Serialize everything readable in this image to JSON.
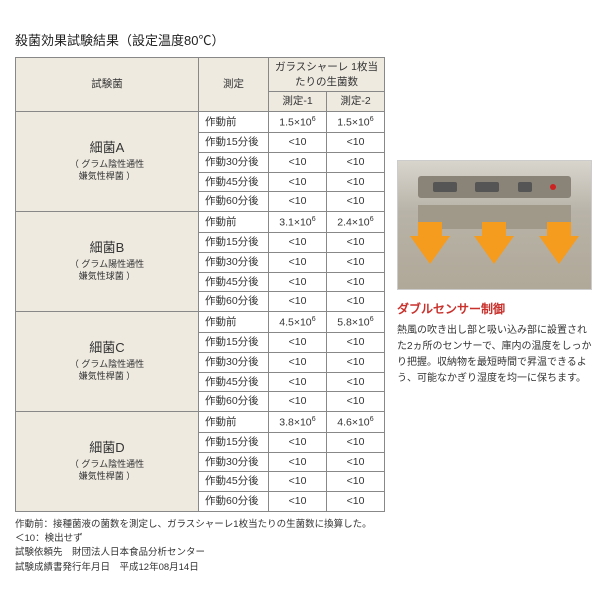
{
  "title": "殺菌効果試験結果（設定温度80℃）",
  "table": {
    "headers": {
      "bacteria": "試験菌",
      "measurement": "測定",
      "dish": "ガラスシャーレ\n1枚当たりの生菌数",
      "m1": "測定-1",
      "m2": "測定-2"
    },
    "timepoints": [
      "作動前",
      "作動15分後",
      "作動30分後",
      "作動45分後",
      "作動60分後"
    ],
    "bacteria": [
      {
        "name": "細菌A",
        "sub": "（ グラム陰性通性\n嫌気性桿菌 ）",
        "vals": [
          [
            "1.5×10⁶",
            "1.5×10⁶"
          ],
          [
            "<10",
            "<10"
          ],
          [
            "<10",
            "<10"
          ],
          [
            "<10",
            "<10"
          ],
          [
            "<10",
            "<10"
          ]
        ]
      },
      {
        "name": "細菌B",
        "sub": "（ グラム陽性通性\n嫌気性球菌 ）",
        "vals": [
          [
            "3.1×10⁶",
            "2.4×10⁶"
          ],
          [
            "<10",
            "<10"
          ],
          [
            "<10",
            "<10"
          ],
          [
            "<10",
            "<10"
          ],
          [
            "<10",
            "<10"
          ]
        ]
      },
      {
        "name": "細菌C",
        "sub": "（ グラム陰性通性\n嫌気性桿菌 ）",
        "vals": [
          [
            "4.5×10⁶",
            "5.8×10⁶"
          ],
          [
            "<10",
            "<10"
          ],
          [
            "<10",
            "<10"
          ],
          [
            "<10",
            "<10"
          ],
          [
            "<10",
            "<10"
          ]
        ]
      },
      {
        "name": "細菌D",
        "sub": "（ グラム陰性通性\n嫌気性桿菌 ）",
        "vals": [
          [
            "3.8×10⁶",
            "4.6×10⁶"
          ],
          [
            "<10",
            "<10"
          ],
          [
            "<10",
            "<10"
          ],
          [
            "<10",
            "<10"
          ],
          [
            "<10",
            "<10"
          ]
        ]
      }
    ]
  },
  "footnotes": [
    "作動前：接種菌液の菌数を測定し、ガラスシャーレ1枚当たりの生菌数に換算した。",
    "＜10：検出せず",
    "試験依頼先　財団法人日本食品分析センター",
    "試験成績書発行年月日　平成12年08月14日"
  ],
  "right": {
    "caption_title": "ダブルセンサー制御",
    "caption_body": "熱風の吹き出し部と吸い込み部に設置された2ヵ所のセンサーで、庫内の温度をしっかり把握。収納物を最短時間で昇温できるよう、可能なかぎり湿度を均一に保ちます。"
  },
  "style": {
    "header_bg": "#eeeae0",
    "border_color": "#888",
    "accent_red": "#c8312c",
    "arrow_color": "#f59b1e"
  }
}
